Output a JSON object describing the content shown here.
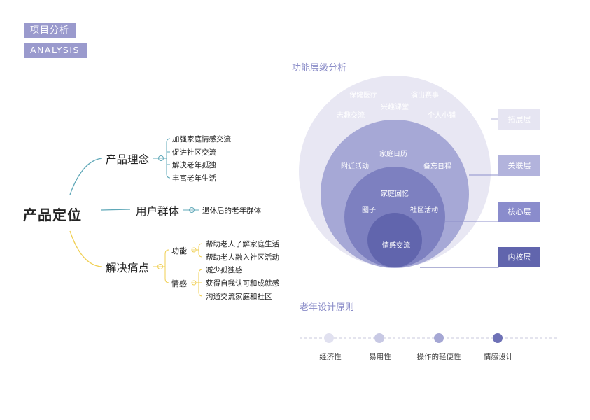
{
  "header": {
    "tag_cn": "项目分析",
    "tag_en": "ANALYSIS"
  },
  "mindmap": {
    "root": "产品定位",
    "concept": {
      "label": "产品理念",
      "items": [
        "加强家庭情感交流",
        "促进社区交流",
        "解决老年孤独",
        "丰富老年生活"
      ]
    },
    "users": {
      "label": "用户群体",
      "items": [
        "退休后的老年群体"
      ]
    },
    "pain": {
      "label": "解决痛点",
      "function": {
        "label": "功能",
        "items": [
          "帮助老人了解家庭生活",
          "帮助老人融入社区活动"
        ]
      },
      "emotion": {
        "label": "情感",
        "items": [
          "减少孤独感",
          "获得自我认可和成就感",
          "沟通交流家庭和社区"
        ]
      }
    }
  },
  "levels": {
    "title": "功能层级分析",
    "outer": [
      "保健医疗",
      "演出赛事",
      "兴趣课堂",
      "志趣交流",
      "个人小铺"
    ],
    "relation": [
      "家庭日历",
      "附近活动",
      "备忘日程"
    ],
    "core": [
      "家庭回忆",
      "圈子",
      "社区活动"
    ],
    "inner": [
      "情感交流"
    ],
    "layers": [
      "拓展层",
      "关联层",
      "核心层",
      "内核层"
    ],
    "colors": {
      "outer": "#e8e7f3",
      "relation": "#a6a8d6",
      "core": "#7d80c0",
      "inner": "#6165ad"
    }
  },
  "principles": {
    "title": "老年设计原则",
    "items": [
      "经济性",
      "易用性",
      "操作的轻便性",
      "情感设计"
    ],
    "dot_colors": [
      "#e1e1f0",
      "#c8c9e4",
      "#a5a7d4",
      "#6e71b6"
    ]
  }
}
